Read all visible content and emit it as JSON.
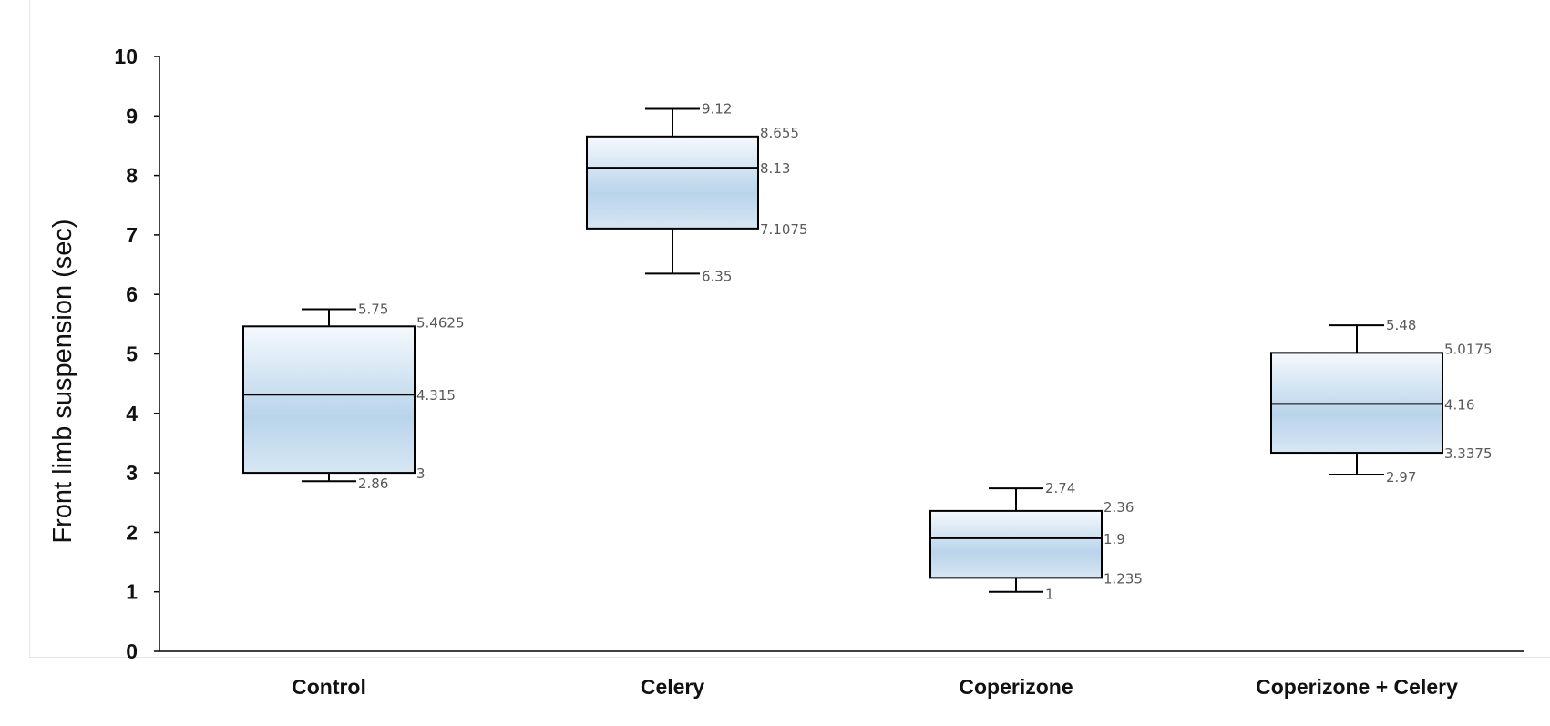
{
  "chart_data": {
    "type": "box",
    "title": "",
    "xlabel": "",
    "ylabel": "Front limb suspension  (sec)",
    "ylim": [
      0,
      10
    ],
    "yticks": [
      "0",
      "1",
      "2",
      "3",
      "4",
      "5",
      "6",
      "7",
      "8",
      "9",
      "10"
    ],
    "grid": false,
    "categories": [
      "Control",
      "Celery",
      "Coperizone",
      "Coperizone + Celery"
    ],
    "boxes": [
      {
        "category": "Control",
        "min": 2.86,
        "q1": 3,
        "median": 4.315,
        "q3": 5.4625,
        "max": 5.75,
        "labels": {
          "min": "2.86",
          "q1": "3",
          "median": "4.315",
          "q3": "5.4625",
          "max": "5.75"
        }
      },
      {
        "category": "Celery",
        "min": 6.35,
        "q1": 7.1075,
        "median": 8.13,
        "q3": 8.655,
        "max": 9.12,
        "labels": {
          "min": "6.35",
          "q1": "7.1075",
          "median": "8.13",
          "q3": "8.655",
          "max": "9.12"
        }
      },
      {
        "category": "Coperizone",
        "min": 1,
        "q1": 1.235,
        "median": 1.9,
        "q3": 2.36,
        "max": 2.74,
        "labels": {
          "min": "1",
          "q1": "1.235",
          "median": "1.9",
          "q3": "2.36",
          "max": "2.74"
        }
      },
      {
        "category": "Coperizone + Celery",
        "min": 2.97,
        "q1": 3.3375,
        "median": 4.16,
        "q3": 5.0175,
        "max": 5.48,
        "labels": {
          "min": "2.97",
          "q1": "3.3375",
          "median": "4.16",
          "q3": "5.0175",
          "max": "5.48"
        }
      }
    ],
    "colors": {
      "box_fill_top": "#f5f9fd",
      "box_fill_mid": "#b9d4ea",
      "box_fill_bottom": "#d7e6f3",
      "stroke": "#000000",
      "data_label": "#595959"
    }
  }
}
